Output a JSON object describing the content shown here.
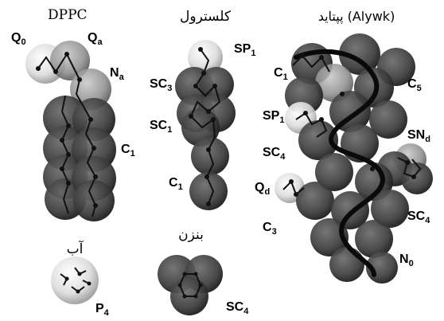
{
  "titles": {
    "dppc": "DPPC",
    "cholesterol": "کلسترول",
    "peptide": "پپتاید (Alywk)",
    "water": "آب",
    "benzene": "بنزن"
  },
  "labels": {
    "q0": {
      "main": "Q",
      "sub": "0"
    },
    "qa": {
      "main": "Q",
      "sub": "a"
    },
    "na": {
      "main": "N",
      "sub": "a"
    },
    "c1_dppc": {
      "main": "C",
      "sub": "1"
    },
    "sp1_chol": {
      "main": "SP",
      "sub": "1"
    },
    "sc3": {
      "main": "SC",
      "sub": "3"
    },
    "sc1": {
      "main": "SC",
      "sub": "1"
    },
    "c1_chol": {
      "main": "C",
      "sub": "1"
    },
    "c1_pep": {
      "main": "C",
      "sub": "1"
    },
    "c5": {
      "main": "C",
      "sub": "5"
    },
    "sp1_pep": {
      "main": "SP",
      "sub": "1"
    },
    "snd": {
      "main": "SN",
      "sub": "d"
    },
    "sc4_pep_left": {
      "main": "SC",
      "sub": "4"
    },
    "qd": {
      "main": "Q",
      "sub": "d"
    },
    "sc4_pep_right": {
      "main": "SC",
      "sub": "4"
    },
    "c3": {
      "main": "C",
      "sub": "3"
    },
    "n0": {
      "main": "N",
      "sub": "0"
    },
    "p4": {
      "main": "P",
      "sub": "4"
    },
    "sc4_benz": {
      "main": "SC",
      "sub": "4"
    }
  }
}
